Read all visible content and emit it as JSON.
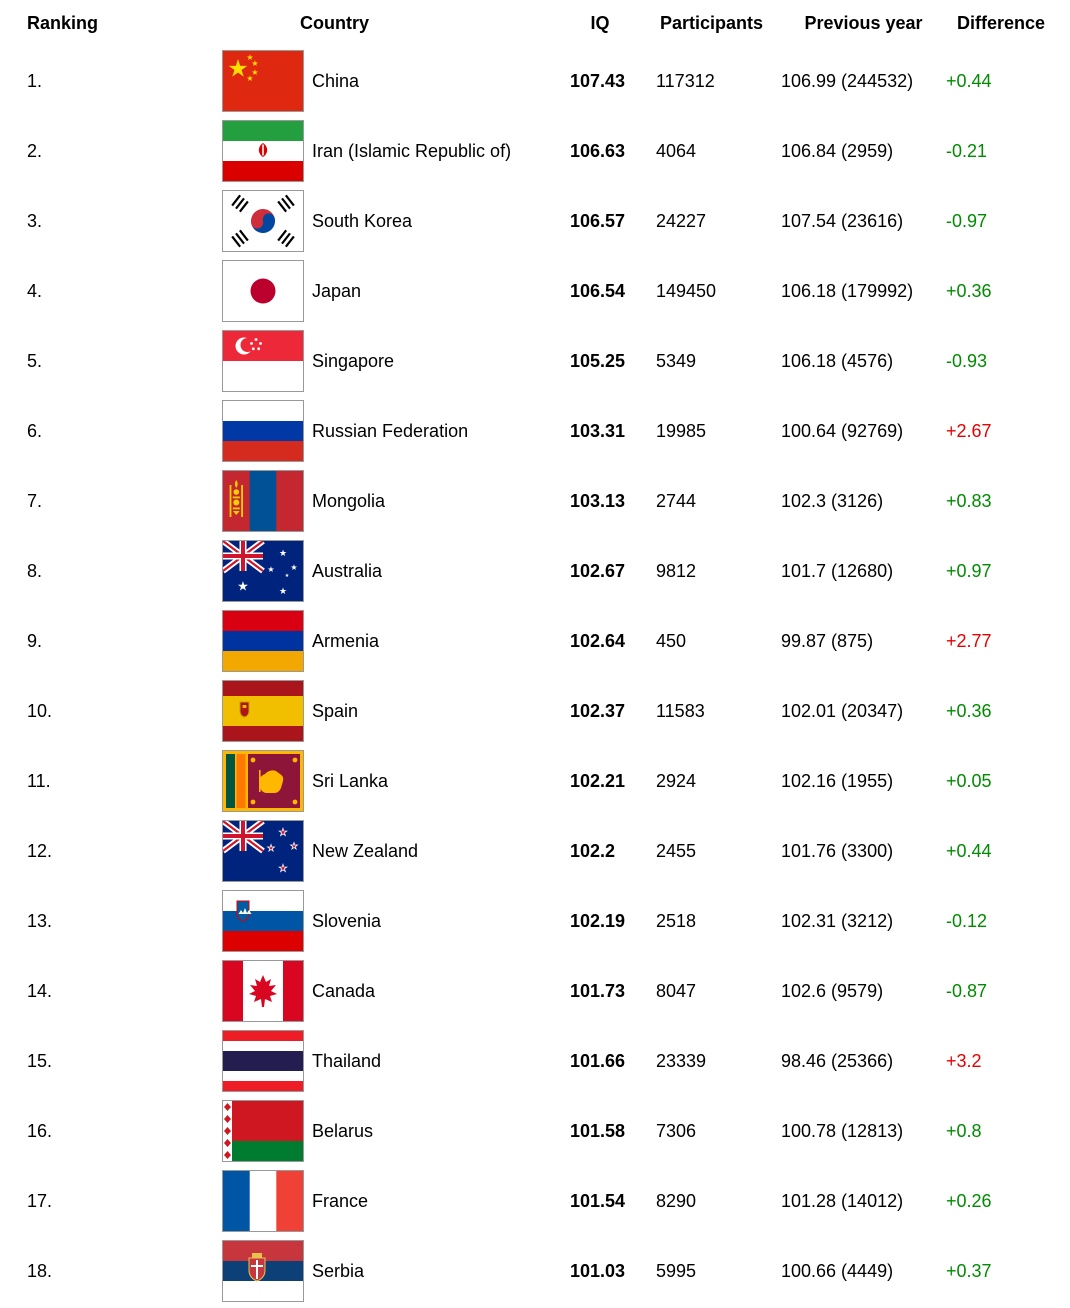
{
  "chart_data": {
    "type": "table",
    "headers": {
      "ranking": "Ranking",
      "country": "Country",
      "iq": "IQ",
      "participants": "Participants",
      "previous_year": "Previous year",
      "difference": "Difference"
    },
    "rows": [
      {
        "rank": "1.",
        "flag": "cn",
        "country": "China",
        "iq": "107.43",
        "participants": "117312",
        "previous_year": "106.99 (244532)",
        "difference": "+0.44",
        "difference_color": "green"
      },
      {
        "rank": "2.",
        "flag": "ir",
        "country": "Iran (Islamic Republic of)",
        "iq": "106.63",
        "participants": "4064",
        "previous_year": "106.84 (2959)",
        "difference": "-0.21",
        "difference_color": "green"
      },
      {
        "rank": "3.",
        "flag": "kr",
        "country": "South Korea",
        "iq": "106.57",
        "participants": "24227",
        "previous_year": "107.54 (23616)",
        "difference": "-0.97",
        "difference_color": "green"
      },
      {
        "rank": "4.",
        "flag": "jp",
        "country": "Japan",
        "iq": "106.54",
        "participants": "149450",
        "previous_year": "106.18 (179992)",
        "difference": "+0.36",
        "difference_color": "green"
      },
      {
        "rank": "5.",
        "flag": "sg",
        "country": "Singapore",
        "iq": "105.25",
        "participants": "5349",
        "previous_year": "106.18 (4576)",
        "difference": "-0.93",
        "difference_color": "green"
      },
      {
        "rank": "6.",
        "flag": "ru",
        "country": "Russian Federation",
        "iq": "103.31",
        "participants": "19985",
        "previous_year": "100.64 (92769)",
        "difference": "+2.67",
        "difference_color": "red"
      },
      {
        "rank": "7.",
        "flag": "mn",
        "country": "Mongolia",
        "iq": "103.13",
        "participants": "2744",
        "previous_year": "102.3 (3126)",
        "difference": "+0.83",
        "difference_color": "green"
      },
      {
        "rank": "8.",
        "flag": "au",
        "country": "Australia",
        "iq": "102.67",
        "participants": "9812",
        "previous_year": "101.7 (12680)",
        "difference": "+0.97",
        "difference_color": "green"
      },
      {
        "rank": "9.",
        "flag": "am",
        "country": "Armenia",
        "iq": "102.64",
        "participants": "450",
        "previous_year": "99.87 (875)",
        "difference": "+2.77",
        "difference_color": "red"
      },
      {
        "rank": "10.",
        "flag": "es",
        "country": "Spain",
        "iq": "102.37",
        "participants": "11583",
        "previous_year": "102.01 (20347)",
        "difference": "+0.36",
        "difference_color": "green"
      },
      {
        "rank": "11.",
        "flag": "lk",
        "country": "Sri Lanka",
        "iq": "102.21",
        "participants": "2924",
        "previous_year": "102.16 (1955)",
        "difference": "+0.05",
        "difference_color": "green"
      },
      {
        "rank": "12.",
        "flag": "nz",
        "country": "New Zealand",
        "iq": "102.2",
        "participants": "2455",
        "previous_year": "101.76 (3300)",
        "difference": "+0.44",
        "difference_color": "green"
      },
      {
        "rank": "13.",
        "flag": "si",
        "country": "Slovenia",
        "iq": "102.19",
        "participants": "2518",
        "previous_year": "102.31 (3212)",
        "difference": "-0.12",
        "difference_color": "green"
      },
      {
        "rank": "14.",
        "flag": "ca",
        "country": "Canada",
        "iq": "101.73",
        "participants": "8047",
        "previous_year": "102.6 (9579)",
        "difference": "-0.87",
        "difference_color": "green"
      },
      {
        "rank": "15.",
        "flag": "th",
        "country": "Thailand",
        "iq": "101.66",
        "participants": "23339",
        "previous_year": "98.46 (25366)",
        "difference": "+3.2",
        "difference_color": "red"
      },
      {
        "rank": "16.",
        "flag": "by",
        "country": "Belarus",
        "iq": "101.58",
        "participants": "7306",
        "previous_year": "100.78 (12813)",
        "difference": "+0.8",
        "difference_color": "green"
      },
      {
        "rank": "17.",
        "flag": "fr",
        "country": "France",
        "iq": "101.54",
        "participants": "8290",
        "previous_year": "101.28 (14012)",
        "difference": "+0.26",
        "difference_color": "green"
      },
      {
        "rank": "18.",
        "flag": "rs",
        "country": "Serbia",
        "iq": "101.03",
        "participants": "5995",
        "previous_year": "100.66 (4449)",
        "difference": "+0.37",
        "difference_color": "green"
      }
    ]
  },
  "colors": {
    "green": "#008b00",
    "red": "#e60000",
    "text": "#000000"
  }
}
